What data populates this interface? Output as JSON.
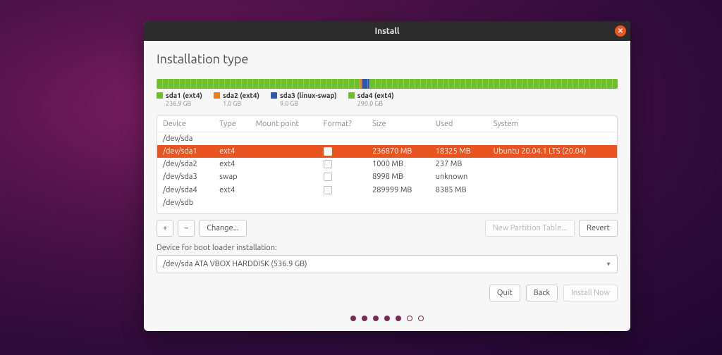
{
  "colors": {
    "accent": "#e95420",
    "window_bg": "#f7f7f7",
    "titlebar_bg": "#2b2b2b",
    "dot": "#772953"
  },
  "window": {
    "title": "Install"
  },
  "page": {
    "title": "Installation type"
  },
  "partition_bar": {
    "total_gb": 536.9,
    "segments": [
      {
        "name": "sda1 (ext4)",
        "size_label": "236.9 GB",
        "color": "#6fbf2a",
        "fraction": 0.441
      },
      {
        "name": "sda2 (ext4)",
        "size_label": "1.0 GB",
        "color": "#f27b1a",
        "fraction": 0.004
      },
      {
        "name": "sda3 (linux-swap)",
        "size_label": "9.0 GB",
        "color": "#2e5aa8",
        "fraction": 0.017
      },
      {
        "name": "sda4 (ext4)",
        "size_label": "290.0 GB",
        "color": "#6fbf2a",
        "fraction": 0.538
      }
    ]
  },
  "table": {
    "columns": [
      "Device",
      "Type",
      "Mount point",
      "Format?",
      "Size",
      "Used",
      "System"
    ],
    "rows": [
      {
        "device": "/dev/sda",
        "type": "",
        "mount": "",
        "format": null,
        "size": "",
        "used": "",
        "system": "",
        "selected": false
      },
      {
        "device": "/dev/sda1",
        "type": "ext4",
        "mount": "",
        "format": false,
        "size": "236870 MB",
        "used": "18325 MB",
        "system": "Ubuntu 20.04.1 LTS (20.04)",
        "selected": true
      },
      {
        "device": "/dev/sda2",
        "type": "ext4",
        "mount": "",
        "format": false,
        "size": "1000 MB",
        "used": "237 MB",
        "system": "",
        "selected": false
      },
      {
        "device": "/dev/sda3",
        "type": "swap",
        "mount": "",
        "format": false,
        "size": "8998 MB",
        "used": "unknown",
        "system": "",
        "selected": false
      },
      {
        "device": "/dev/sda4",
        "type": "ext4",
        "mount": "",
        "format": false,
        "size": "289999 MB",
        "used": "8385 MB",
        "system": "",
        "selected": false
      },
      {
        "device": "/dev/sdb",
        "type": "",
        "mount": "",
        "format": null,
        "size": "",
        "used": "",
        "system": "",
        "selected": false
      }
    ]
  },
  "toolbar": {
    "add": "+",
    "remove": "–",
    "change": "Change...",
    "new_table": "New Partition Table...",
    "revert": "Revert"
  },
  "boot": {
    "label": "Device for boot loader installation:",
    "value": "/dev/sda   ATA VBOX HARDDISK (536.9 GB)"
  },
  "footer": {
    "quit": "Quit",
    "back": "Back",
    "install": "Install Now"
  },
  "progress_dots": {
    "total": 7,
    "filled": 5
  }
}
